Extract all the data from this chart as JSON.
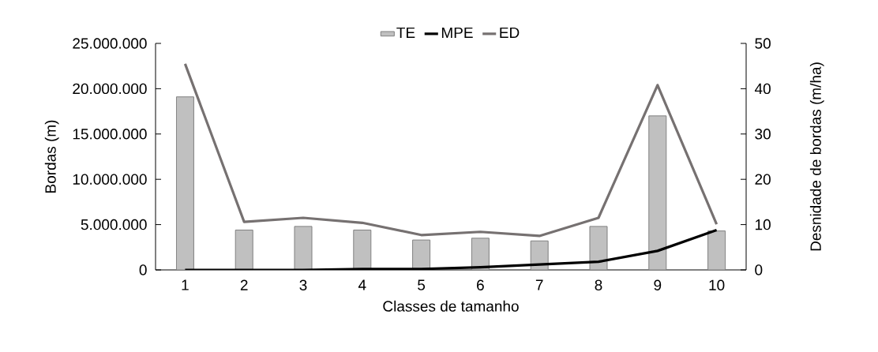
{
  "chart_data": {
    "type": "bar",
    "xlabel": "Classes de tamanho",
    "ylabel": "Bordas (m)",
    "y2label": "Desnidade de bordas (m/ha)",
    "categories": [
      "1",
      "2",
      "3",
      "4",
      "5",
      "6",
      "7",
      "8",
      "9",
      "10"
    ],
    "series": [
      {
        "name": "TE",
        "color": "#c0c0c0",
        "values": [
          19100000,
          4400000,
          4800000,
          4400000,
          3300000,
          3500000,
          3200000,
          4800000,
          17000000,
          4300000
        ]
      },
      {
        "name": "MPE",
        "type": "line",
        "color": "#000000",
        "values": [
          0,
          0,
          0,
          100000,
          100000,
          300000,
          600000,
          900000,
          2100000,
          4400000
        ]
      },
      {
        "name": "ED",
        "type": "line",
        "axis": "y2",
        "color": "#767171",
        "values": [
          45.5,
          10.6,
          11.5,
          10.4,
          7.7,
          8.4,
          7.5,
          11.5,
          40.8,
          10.1
        ]
      }
    ],
    "ylim": [
      0,
      25000000
    ],
    "yticks": [
      {
        "value": 0,
        "label": "0"
      },
      {
        "value": 5000000,
        "label": "5.000.000"
      },
      {
        "value": 10000000,
        "label": "10.000.000"
      },
      {
        "value": 15000000,
        "label": "15.000.000"
      },
      {
        "value": 20000000,
        "label": "20.000.000"
      },
      {
        "value": 25000000,
        "label": "25.000.000"
      }
    ],
    "y2lim": [
      0,
      50
    ],
    "y2ticks": [
      0,
      10,
      20,
      30,
      40,
      50
    ],
    "legend": "top",
    "grid": false
  }
}
